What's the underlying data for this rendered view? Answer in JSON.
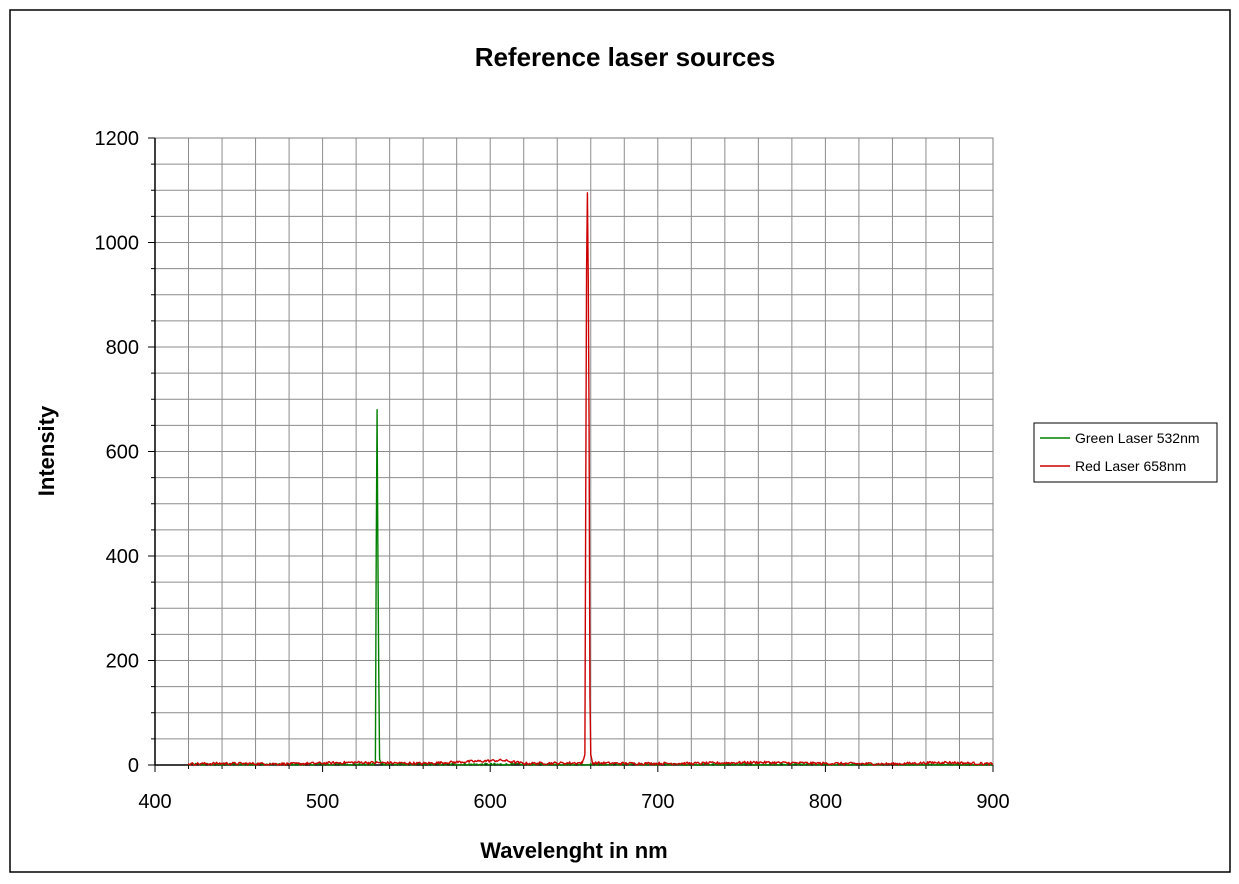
{
  "chart_data": {
    "type": "line",
    "title": "Reference laser sources",
    "xlabel": "Wavelenght in nm",
    "ylabel": "Intensity",
    "xlim": [
      400,
      900
    ],
    "ylim": [
      0,
      1200
    ],
    "x_ticks": [
      400,
      500,
      600,
      700,
      800,
      900
    ],
    "y_ticks": [
      0,
      200,
      400,
      600,
      800,
      1000,
      1200
    ],
    "x_minor_step": 20,
    "y_minor_step": 50,
    "grid": true,
    "legend_position": "right",
    "data_range_x": [
      420,
      900
    ],
    "series": [
      {
        "name": "Green Laser 532nm",
        "color": "#008000",
        "points": [
          [
            420,
            1
          ],
          [
            530,
            1
          ],
          [
            531.5,
            3
          ],
          [
            532,
            410
          ],
          [
            532.5,
            680
          ],
          [
            533,
            400
          ],
          [
            533.5,
            180
          ],
          [
            534,
            10
          ],
          [
            535,
            2
          ],
          [
            545,
            1
          ],
          [
            900,
            0
          ]
        ]
      },
      {
        "name": "Red Laser 658nm",
        "color": "#cc0000",
        "points": [
          [
            420,
            2
          ],
          [
            440,
            3
          ],
          [
            480,
            2
          ],
          [
            520,
            5
          ],
          [
            560,
            3
          ],
          [
            607,
            9
          ],
          [
            620,
            3
          ],
          [
            655,
            4
          ],
          [
            656.5,
            20
          ],
          [
            657,
            510
          ],
          [
            657.5,
            950
          ],
          [
            658,
            1095
          ],
          [
            658.5,
            930
          ],
          [
            659,
            650
          ],
          [
            659.5,
            135
          ],
          [
            660,
            20
          ],
          [
            661,
            4
          ],
          [
            680,
            3
          ],
          [
            720,
            3
          ],
          [
            760,
            5
          ],
          [
            800,
            3
          ],
          [
            840,
            2
          ],
          [
            870,
            5
          ],
          [
            900,
            2
          ]
        ]
      }
    ]
  }
}
